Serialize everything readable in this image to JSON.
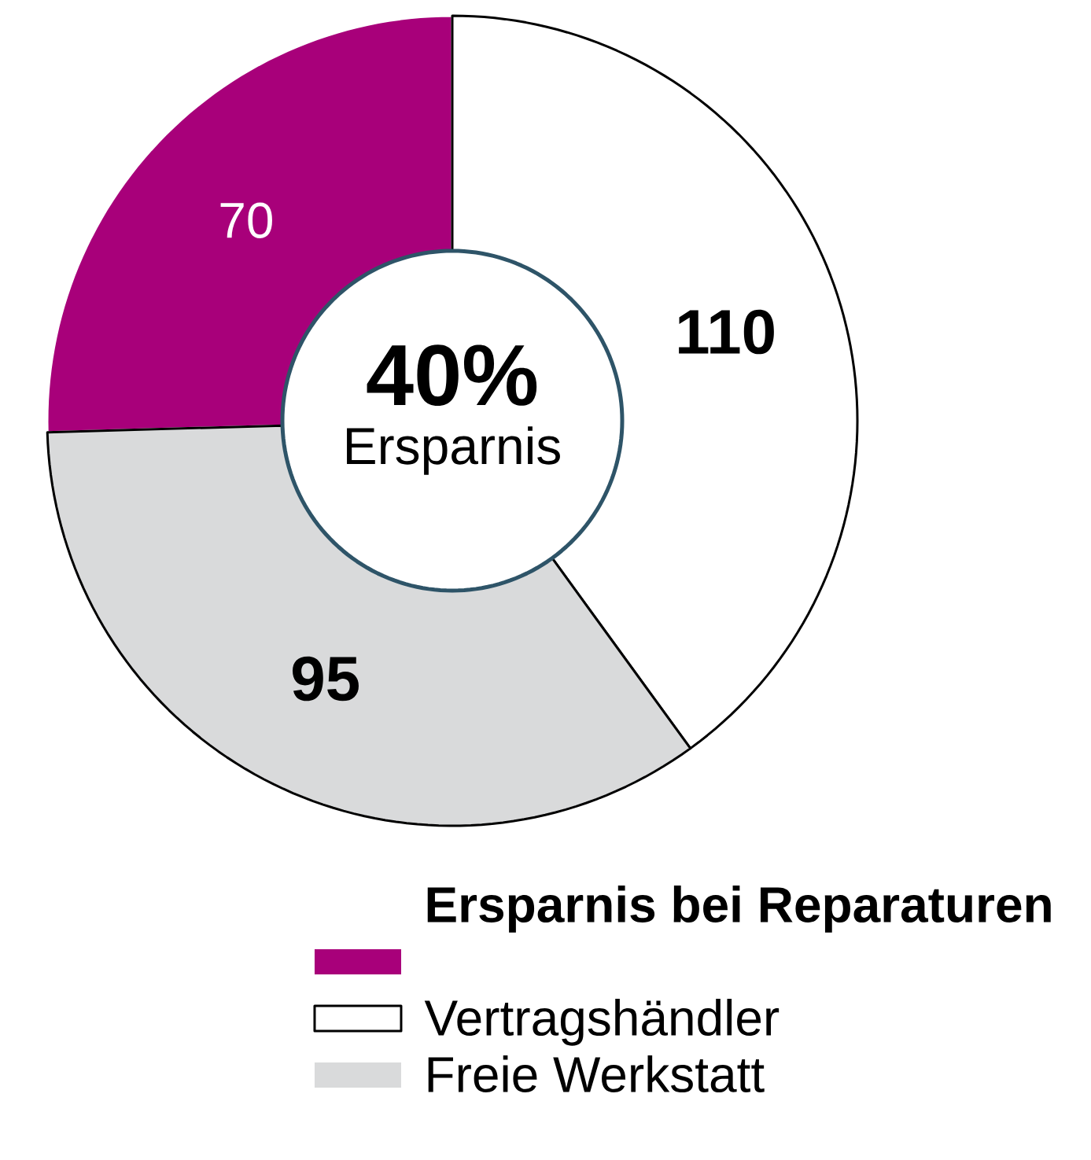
{
  "chart_data": {
    "type": "donut",
    "categories": [
      null,
      "Vertragshändler",
      "Freie Werkstatt"
    ],
    "values": [
      70,
      110,
      95
    ],
    "colors": [
      "#a8007a",
      "#ffffff",
      "#d9dadb"
    ],
    "data_labels": true,
    "legend": "bottom",
    "legend_title": "Ersparnis bei Reparaturen",
    "annotations": [
      "40%",
      "Ersparnis"
    ]
  }
}
